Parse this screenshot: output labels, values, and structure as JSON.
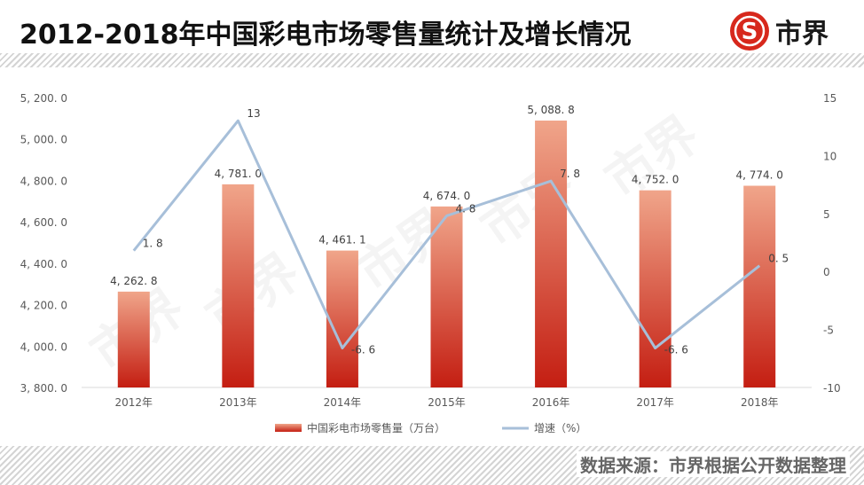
{
  "header": {
    "title": "2012-2018年中国彩电市场零售量统计及增长情况",
    "logo_text": "市界",
    "logo_mark": "S"
  },
  "footer": {
    "source": "数据来源：市界根据公开数据整理"
  },
  "watermark": "市界",
  "colors": {
    "bar_top": "#f0a58a",
    "bar_bottom": "#c41e12",
    "line": "#a7bfd9",
    "axis_text": "#595959",
    "logo_red": "#d7281c"
  },
  "chart_data": {
    "type": "bar",
    "categories": [
      "2012年",
      "2013年",
      "2014年",
      "2015年",
      "2016年",
      "2017年",
      "2018年"
    ],
    "series": [
      {
        "name": "中国彩电市场零售量（万台）",
        "type": "bar",
        "axis": "left",
        "values": [
          4262.8,
          4781.0,
          4461.1,
          4674.0,
          5088.8,
          4752.0,
          4774.0
        ],
        "labels": [
          "4, 262. 8",
          "4, 781. 0",
          "4, 461. 1",
          "4, 674. 0",
          "5, 088. 8",
          "4, 752. 0",
          "4, 774. 0"
        ]
      },
      {
        "name": "增速（%）",
        "type": "line",
        "axis": "right",
        "values": [
          1.8,
          13,
          -6.6,
          4.8,
          7.8,
          -6.6,
          0.5
        ],
        "labels": [
          "1. 8",
          "13",
          "-6. 6",
          "4. 8",
          "7. 8",
          "-6. 6",
          "0. 5"
        ]
      }
    ],
    "y_left": {
      "range": [
        3800,
        5200
      ],
      "ticks": [
        3800,
        4000,
        4200,
        4400,
        4600,
        4800,
        5000,
        5200
      ],
      "tick_labels": [
        "3, 800. 0",
        "4, 000. 0",
        "4, 200. 0",
        "4, 400. 0",
        "4, 600. 0",
        "4, 800. 0",
        "5, 000. 0",
        "5, 200. 0"
      ]
    },
    "y_right": {
      "range": [
        -10,
        15
      ],
      "ticks": [
        -10,
        -5,
        0,
        5,
        10,
        15
      ],
      "tick_labels": [
        "-10",
        "-5",
        "0",
        "5",
        "10",
        "15"
      ]
    },
    "grid": false,
    "legend": "bottom"
  }
}
